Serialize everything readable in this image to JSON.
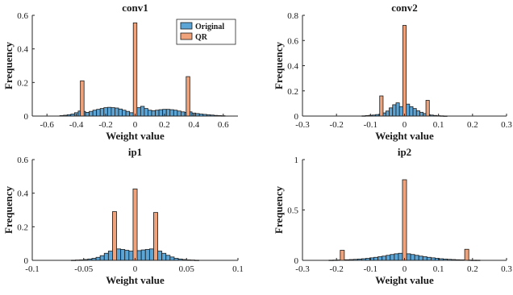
{
  "colors": {
    "original": "#5ba4d6",
    "qr": "#f0a27a",
    "axis": "#262626"
  },
  "chart_data": [
    {
      "type": "bar",
      "title": "conv1",
      "xlabel": "Weight value",
      "ylabel": "Frequency",
      "xlim": [
        -0.7,
        0.7
      ],
      "ylim": [
        0,
        0.6
      ],
      "xticks": [
        -0.6,
        -0.4,
        -0.2,
        0,
        0.2,
        0.4,
        0.6
      ],
      "xtick_labels": [
        "-0.6",
        "-0.4",
        "-0.2",
        "0",
        "0.2",
        "0.4",
        "0.6"
      ],
      "yticks": [
        0,
        0.2,
        0.4,
        0.6
      ],
      "ytick_labels": [
        "0",
        "0.2",
        "0.4",
        "0.6"
      ],
      "bin_width": 0.025,
      "legend": {
        "position": "top-right",
        "entries": [
          "Original",
          "QR"
        ]
      },
      "series": [
        {
          "name": "Original",
          "x": [
            -0.5,
            -0.475,
            -0.45,
            -0.425,
            -0.4,
            -0.375,
            -0.35,
            -0.325,
            -0.3,
            -0.275,
            -0.25,
            -0.225,
            -0.2,
            -0.175,
            -0.15,
            -0.125,
            -0.1,
            -0.075,
            -0.05,
            -0.025,
            0.025,
            0.05,
            0.075,
            0.1,
            0.125,
            0.15,
            0.175,
            0.2,
            0.225,
            0.25,
            0.275,
            0.3,
            0.325,
            0.35,
            0.375,
            0.4,
            0.425,
            0.45,
            0.475,
            0.5,
            0.525,
            0.55,
            0.575,
            0.6
          ],
          "values": [
            0.003,
            0.005,
            0.008,
            0.012,
            0.02,
            0.03,
            0.028,
            0.022,
            0.028,
            0.035,
            0.04,
            0.045,
            0.05,
            0.052,
            0.05,
            0.048,
            0.042,
            0.035,
            0.028,
            0.02,
            0.05,
            0.058,
            0.045,
            0.035,
            0.032,
            0.035,
            0.038,
            0.04,
            0.04,
            0.038,
            0.035,
            0.03,
            0.025,
            0.022,
            0.025,
            0.018,
            0.015,
            0.012,
            0.01,
            0.008,
            0.006,
            0.004,
            0.003,
            0.002
          ]
        },
        {
          "name": "QR",
          "x": [
            -0.36,
            0,
            0.36
          ],
          "values": [
            0.21,
            0.555,
            0.235
          ]
        }
      ]
    },
    {
      "type": "bar",
      "title": "conv2",
      "xlabel": "Weight value",
      "ylabel": "Frequency",
      "xlim": [
        -0.3,
        0.3
      ],
      "ylim": [
        0,
        0.8
      ],
      "xticks": [
        -0.3,
        -0.2,
        -0.1,
        0,
        0.1,
        0.2,
        0.3
      ],
      "xtick_labels": [
        "-0.3",
        "-0.2",
        "-0.1",
        "0",
        "0.1",
        "0.2",
        "0.3"
      ],
      "yticks": [
        0,
        0.2,
        0.4,
        0.6,
        0.8
      ],
      "ytick_labels": [
        "0",
        "0.2",
        "0.4",
        "0.6",
        "0.8"
      ],
      "bin_width": 0.01,
      "series": [
        {
          "name": "Original",
          "x": [
            -0.12,
            -0.11,
            -0.1,
            -0.09,
            -0.08,
            -0.07,
            -0.06,
            -0.05,
            -0.04,
            -0.03,
            -0.02,
            -0.01,
            0.01,
            0.02,
            0.03,
            0.04,
            0.05,
            0.06,
            0.07,
            0.08,
            0.09,
            0.1,
            0.11,
            0.12
          ],
          "values": [
            0.002,
            0.004,
            0.006,
            0.008,
            0.012,
            0.016,
            0.025,
            0.04,
            0.065,
            0.09,
            0.105,
            0.075,
            0.095,
            0.075,
            0.06,
            0.042,
            0.03,
            0.02,
            0.012,
            0.008,
            0.005,
            0.003,
            0.002,
            0.001
          ]
        },
        {
          "name": "QR",
          "x": [
            -0.068,
            0,
            0.068
          ],
          "values": [
            0.16,
            0.72,
            0.125
          ]
        }
      ]
    },
    {
      "type": "bar",
      "title": "ip1",
      "xlabel": "Weight value",
      "ylabel": "Frequency",
      "xlim": [
        -0.1,
        0.1
      ],
      "ylim": [
        0,
        0.6
      ],
      "xticks": [
        -0.1,
        -0.05,
        0,
        0.05,
        0.1
      ],
      "xtick_labels": [
        "-0.1",
        "-0.05",
        "0",
        "0.05",
        "0.1"
      ],
      "yticks": [
        0,
        0.2,
        0.4,
        0.6
      ],
      "ytick_labels": [
        "0",
        "0.2",
        "0.4",
        "0.6"
      ],
      "bin_width": 0.004,
      "series": [
        {
          "name": "Original",
          "x": [
            -0.06,
            -0.056,
            -0.052,
            -0.048,
            -0.044,
            -0.04,
            -0.036,
            -0.032,
            -0.028,
            -0.024,
            -0.02,
            -0.016,
            -0.012,
            -0.008,
            -0.004,
            0.004,
            0.008,
            0.012,
            0.016,
            0.02,
            0.024,
            0.028,
            0.032,
            0.036,
            0.04,
            0.044,
            0.048,
            0.052,
            0.056,
            0.06
          ],
          "values": [
            0.001,
            0.002,
            0.003,
            0.005,
            0.008,
            0.012,
            0.018,
            0.028,
            0.042,
            0.055,
            0.065,
            0.068,
            0.065,
            0.06,
            0.055,
            0.058,
            0.062,
            0.065,
            0.068,
            0.065,
            0.055,
            0.042,
            0.03,
            0.02,
            0.012,
            0.008,
            0.005,
            0.003,
            0.002,
            0.001
          ]
        },
        {
          "name": "QR",
          "x": [
            -0.02,
            0,
            0.02
          ],
          "values": [
            0.29,
            0.425,
            0.285
          ]
        }
      ]
    },
    {
      "type": "bar",
      "title": "ip2",
      "xlabel": "Weight value",
      "ylabel": "Frequency",
      "xlim": [
        -0.3,
        0.3
      ],
      "ylim": [
        0,
        1
      ],
      "xticks": [
        -0.3,
        -0.2,
        -0.1,
        0,
        0.1,
        0.2,
        0.3
      ],
      "xtick_labels": [
        "-0.3",
        "-0.2",
        "-0.1",
        "0",
        "0.1",
        "0.2",
        "0.3"
      ],
      "yticks": [
        0,
        0.5,
        1
      ],
      "ytick_labels": [
        "0",
        "0.5",
        "1"
      ],
      "bin_width": 0.012,
      "series": [
        {
          "name": "Original",
          "x": [
            -0.216,
            -0.204,
            -0.192,
            -0.18,
            -0.168,
            -0.156,
            -0.144,
            -0.132,
            -0.12,
            -0.108,
            -0.096,
            -0.084,
            -0.072,
            -0.06,
            -0.048,
            -0.036,
            -0.024,
            -0.012,
            0.012,
            0.024,
            0.036,
            0.048,
            0.06,
            0.072,
            0.084,
            0.096,
            0.108,
            0.12,
            0.132,
            0.144,
            0.156,
            0.168,
            0.18,
            0.192,
            0.204,
            0.216
          ],
          "values": [
            0.002,
            0.003,
            0.004,
            0.005,
            0.006,
            0.008,
            0.01,
            0.013,
            0.016,
            0.02,
            0.025,
            0.03,
            0.036,
            0.042,
            0.05,
            0.058,
            0.065,
            0.07,
            0.065,
            0.058,
            0.05,
            0.042,
            0.036,
            0.03,
            0.025,
            0.02,
            0.016,
            0.013,
            0.01,
            0.008,
            0.006,
            0.005,
            0.004,
            0.003,
            0.002,
            0.002
          ]
        },
        {
          "name": "QR",
          "x": [
            -0.183,
            0,
            0.183
          ],
          "values": [
            0.1,
            0.8,
            0.11
          ]
        }
      ]
    }
  ]
}
